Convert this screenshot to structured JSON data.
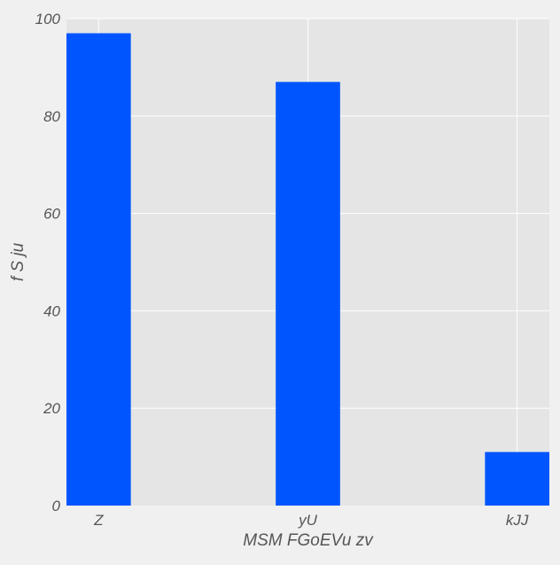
{
  "chart_data": {
    "type": "bar",
    "title": "",
    "xlabel": "MSM FGoEVu zv",
    "ylabel": "f S  ju",
    "categories": [
      "Z",
      "yU",
      "kJJ"
    ],
    "values": [
      97,
      87,
      11
    ],
    "ylim": [
      0,
      100
    ],
    "yticks": [
      0,
      20,
      40,
      60,
      80,
      100
    ],
    "grid": true,
    "legend": "none",
    "colors": {
      "bar": "#0055ff",
      "plot_background": "#e5e5e5",
      "figure_background": "#f0f0f0",
      "grid": "#ffffff",
      "text": "#555555"
    }
  }
}
